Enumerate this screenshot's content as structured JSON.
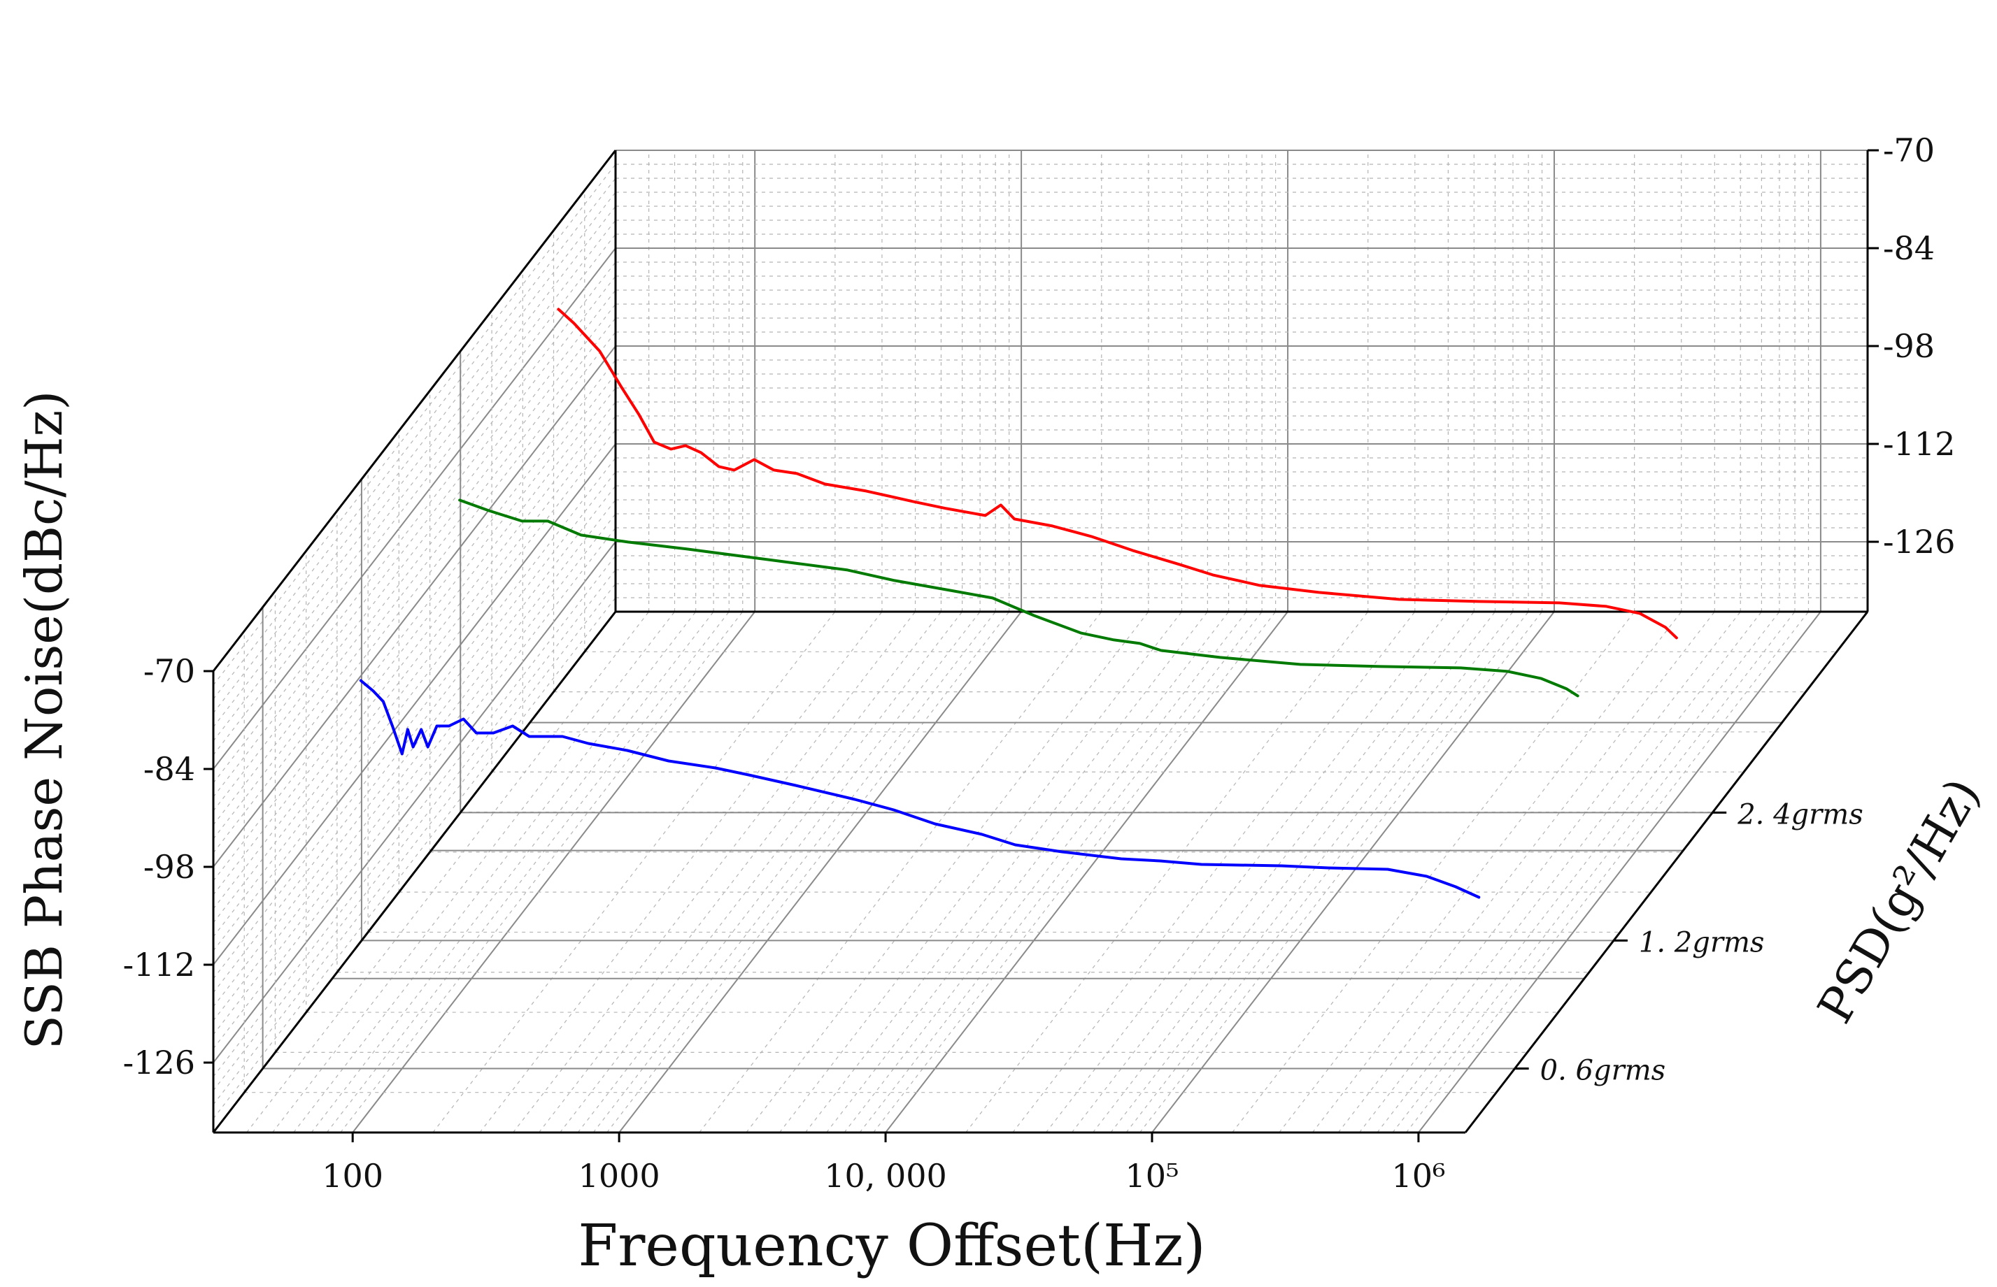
{
  "chart_data": {
    "type": "line",
    "title": "",
    "xlabel": "Frequency Offset(Hz)",
    "ylabel": "SSB Phase Noise(dBc/Hz)",
    "zlabel": "PSD(g²/Hz)",
    "x_scale": "log",
    "xlim": [
      30,
      1500000
    ],
    "ylim": [
      -136,
      -70
    ],
    "x_ticks": [
      100,
      1000,
      10000,
      100000,
      1000000
    ],
    "x_tick_labels": [
      "100",
      "1000",
      "10, 000",
      "10⁵",
      "10⁶"
    ],
    "y_ticks": [
      -70,
      -84,
      -98,
      -112,
      -126
    ],
    "y_tick_labels": [
      "-70",
      "-84",
      "-98",
      "-112",
      "-126"
    ],
    "z_categories": [
      "0. 6grms",
      "1. 2grms",
      "2. 4grms"
    ],
    "series": [
      {
        "name": "0. 6grms",
        "color": "#0000ff",
        "points": [
          [
            70,
            -80.5
          ],
          [
            78,
            -82
          ],
          [
            85,
            -83.5
          ],
          [
            92,
            -87
          ],
          [
            100,
            -91
          ],
          [
            105,
            -87.5
          ],
          [
            110,
            -90
          ],
          [
            118,
            -87.5
          ],
          [
            125,
            -90
          ],
          [
            135,
            -87
          ],
          [
            150,
            -87
          ],
          [
            170,
            -86
          ],
          [
            190,
            -88
          ],
          [
            220,
            -88
          ],
          [
            260,
            -87
          ],
          [
            300,
            -88.5
          ],
          [
            400,
            -88.5
          ],
          [
            500,
            -89.5
          ],
          [
            700,
            -90.5
          ],
          [
            1000,
            -92
          ],
          [
            1500,
            -93
          ],
          [
            2000,
            -94
          ],
          [
            3000,
            -95.5
          ],
          [
            5000,
            -97.5
          ],
          [
            7000,
            -99
          ],
          [
            10000,
            -101
          ],
          [
            15000,
            -102.5
          ],
          [
            20000,
            -104
          ],
          [
            30000,
            -105
          ],
          [
            50000,
            -106
          ],
          [
            70000,
            -106.3
          ],
          [
            100000,
            -106.8
          ],
          [
            200000,
            -107
          ],
          [
            300000,
            -107.3
          ],
          [
            500000,
            -107.5
          ],
          [
            700000,
            -108.5
          ],
          [
            900000,
            -110
          ],
          [
            1100000,
            -111.5
          ]
        ]
      },
      {
        "name": "1. 2grms",
        "color": "#007a00",
        "points": [
          [
            70,
            -73
          ],
          [
            90,
            -74.5
          ],
          [
            120,
            -76
          ],
          [
            150,
            -76
          ],
          [
            200,
            -78
          ],
          [
            300,
            -79
          ],
          [
            500,
            -80
          ],
          [
            1000,
            -81.5
          ],
          [
            2000,
            -83
          ],
          [
            3000,
            -84.5
          ],
          [
            5000,
            -86
          ],
          [
            7000,
            -87
          ],
          [
            10000,
            -89.5
          ],
          [
            15000,
            -92
          ],
          [
            20000,
            -93
          ],
          [
            25000,
            -93.5
          ],
          [
            30000,
            -94.5
          ],
          [
            50000,
            -95.5
          ],
          [
            100000,
            -96.5
          ],
          [
            200000,
            -96.8
          ],
          [
            400000,
            -97
          ],
          [
            600000,
            -97.5
          ],
          [
            800000,
            -98.5
          ],
          [
            1000000,
            -100
          ],
          [
            1100000,
            -101
          ]
        ]
      },
      {
        "name": "2. 4grms",
        "color": "#ff0000",
        "points": [
          [
            70,
            -64
          ],
          [
            80,
            -66
          ],
          [
            100,
            -70
          ],
          [
            120,
            -75
          ],
          [
            140,
            -79
          ],
          [
            160,
            -83
          ],
          [
            185,
            -84
          ],
          [
            210,
            -83.5
          ],
          [
            240,
            -84.5
          ],
          [
            280,
            -86.5
          ],
          [
            320,
            -87
          ],
          [
            380,
            -85.5
          ],
          [
            450,
            -87
          ],
          [
            550,
            -87.5
          ],
          [
            700,
            -89
          ],
          [
            1000,
            -90
          ],
          [
            1500,
            -91.5
          ],
          [
            2000,
            -92.5
          ],
          [
            2800,
            -93.5
          ],
          [
            3200,
            -92
          ],
          [
            3600,
            -94
          ],
          [
            5000,
            -95
          ],
          [
            7000,
            -96.5
          ],
          [
            10000,
            -98.5
          ],
          [
            15000,
            -100.5
          ],
          [
            20000,
            -102
          ],
          [
            30000,
            -103.5
          ],
          [
            50000,
            -104.5
          ],
          [
            100000,
            -105.5
          ],
          [
            200000,
            -105.8
          ],
          [
            400000,
            -106
          ],
          [
            600000,
            -106.5
          ],
          [
            800000,
            -107.5
          ],
          [
            1000000,
            -109.5
          ],
          [
            1100000,
            -111
          ]
        ]
      }
    ]
  }
}
